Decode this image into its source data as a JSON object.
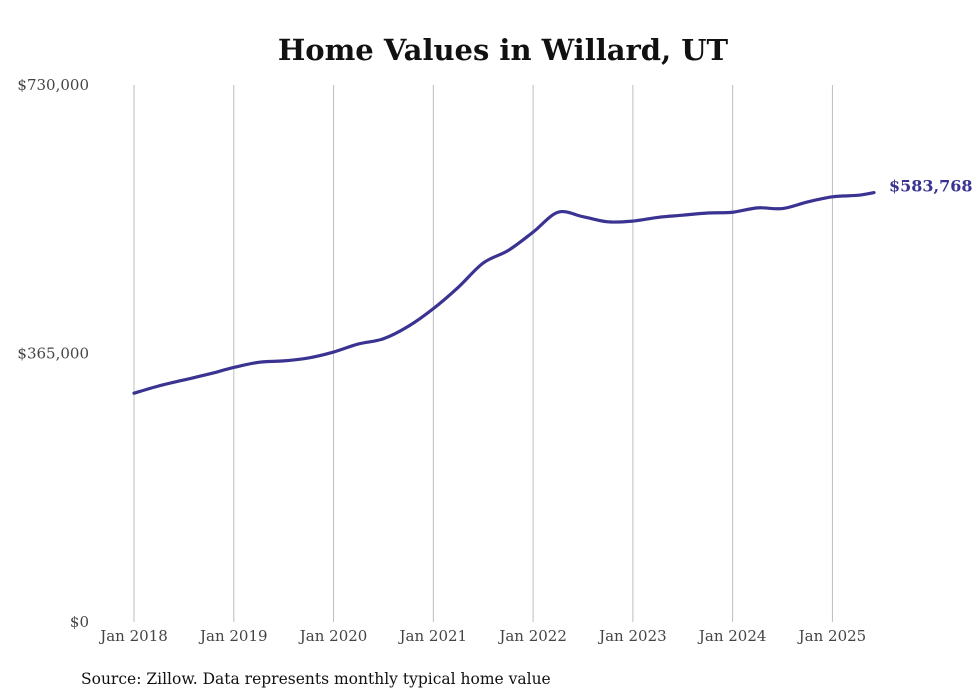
{
  "chart_data": {
    "type": "line",
    "title": "Home Values in Willard, UT",
    "ylim": [
      0,
      730000
    ],
    "y_ticks": [
      {
        "value": 0,
        "label": "$0"
      },
      {
        "value": 365000,
        "label": "$365,000"
      },
      {
        "value": 730000,
        "label": "$730,000"
      }
    ],
    "x_ticks": [
      {
        "value": "2018-01",
        "label": "Jan 2018"
      },
      {
        "value": "2019-01",
        "label": "Jan 2019"
      },
      {
        "value": "2020-01",
        "label": "Jan 2020"
      },
      {
        "value": "2021-01",
        "label": "Jan 2021"
      },
      {
        "value": "2022-01",
        "label": "Jan 2022"
      },
      {
        "value": "2023-01",
        "label": "Jan 2023"
      },
      {
        "value": "2024-01",
        "label": "Jan 2024"
      },
      {
        "value": "2025-01",
        "label": "Jan 2025"
      }
    ],
    "xlim": [
      "2018-01",
      "2025-06"
    ],
    "grid": "vertical",
    "series": [
      {
        "color": "#3b3391",
        "end_label": "$583,768",
        "x": [
          "2018-01",
          "2018-04",
          "2018-07",
          "2018-10",
          "2019-01",
          "2019-04",
          "2019-07",
          "2019-10",
          "2020-01",
          "2020-04",
          "2020-07",
          "2020-10",
          "2021-01",
          "2021-04",
          "2021-07",
          "2021-10",
          "2022-01",
          "2022-04",
          "2022-07",
          "2022-10",
          "2023-01",
          "2023-04",
          "2023-07",
          "2023-10",
          "2024-01",
          "2024-04",
          "2024-07",
          "2024-10",
          "2025-01",
          "2025-04",
          "2025-06"
        ],
        "values": [
          311000,
          321000,
          329000,
          337000,
          346000,
          353000,
          355000,
          359000,
          367000,
          378000,
          385000,
          402000,
          426000,
          455000,
          488000,
          505000,
          530000,
          557000,
          551000,
          544000,
          545000,
          550000,
          553000,
          556000,
          557000,
          563000,
          562000,
          571000,
          578000,
          580000,
          583768
        ]
      }
    ]
  },
  "source_note": "Source: Zillow. Data represents monthly typical home value"
}
